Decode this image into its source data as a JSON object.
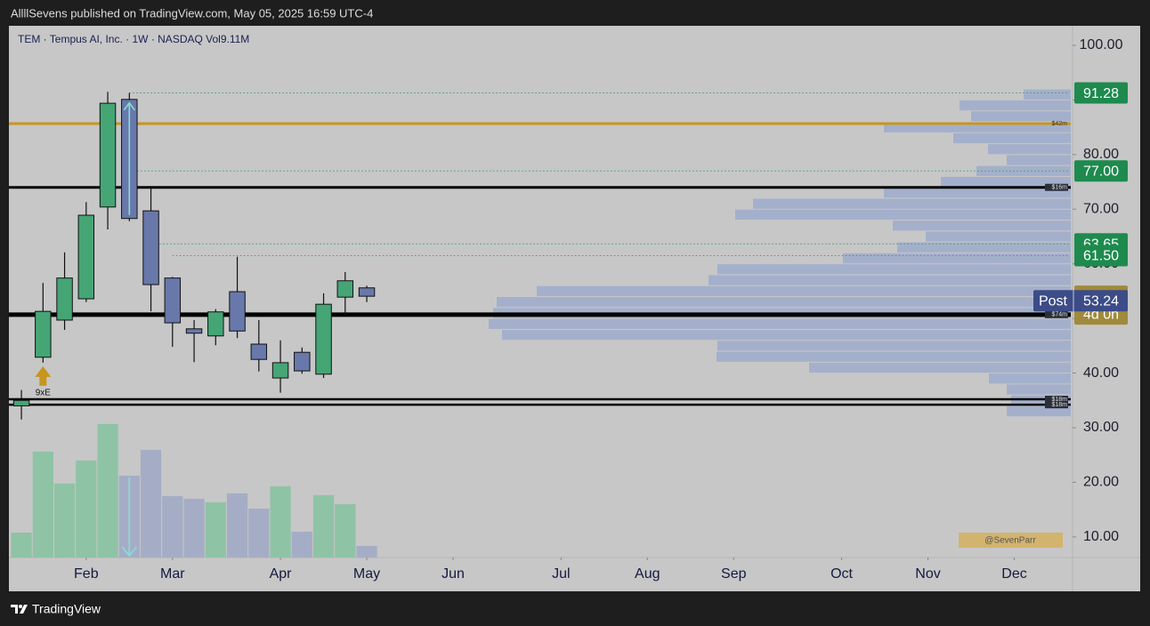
{
  "header": {
    "published": "AllllSevens published on TradingView.com, May 05, 2025 16:59 UTC-4",
    "brand": "TradingView"
  },
  "chart_data": {
    "type": "candlestick",
    "legend_text": "TEM · Tempus AI, Inc. · 1W · NASDAQ  Vol9.11M",
    "categories": [
      null,
      null,
      null,
      null,
      null,
      null,
      null,
      null,
      null,
      null,
      null,
      null,
      null,
      null,
      null,
      null,
      null
    ],
    "xlim": [
      -0.58,
      48.7
    ],
    "xticks": [
      {
        "value": 3,
        "label": "Feb"
      },
      {
        "value": 7,
        "label": "Mar"
      },
      {
        "value": 12,
        "label": "Apr"
      },
      {
        "value": 16,
        "label": "May"
      },
      {
        "value": 20,
        "label": "Jun"
      },
      {
        "value": 25,
        "label": "Jul"
      },
      {
        "value": 29,
        "label": "Aug"
      },
      {
        "value": 33,
        "label": "Sep"
      },
      {
        "value": 38,
        "label": "Oct"
      },
      {
        "value": 42,
        "label": "Nov"
      },
      {
        "value": 46,
        "label": "Dec"
      }
    ],
    "ylim": [
      6.23,
      103.58
    ],
    "yticks": [
      {
        "value": 10,
        "label": "10.00"
      },
      {
        "value": 20,
        "label": "20.00"
      },
      {
        "value": 30,
        "label": "30.00"
      },
      {
        "value": 40,
        "label": "40.00"
      },
      {
        "value": 50,
        "label": "50.00"
      },
      {
        "value": 60,
        "label": "60.00"
      },
      {
        "value": 70,
        "label": "70.00"
      },
      {
        "value": 80,
        "label": "80.00"
      },
      {
        "value": 90,
        "label": "90.00"
      },
      {
        "value": 100,
        "label": "100.00"
      }
    ],
    "open": [
      34.0,
      42.9,
      49.7,
      53.6,
      70.4,
      90.1,
      69.7,
      57.4,
      48.1,
      46.8,
      54.9,
      45.3,
      39.1,
      43.8,
      39.8,
      53.9,
      55.6
    ],
    "high": [
      36.9,
      56.5,
      62.1,
      71.3,
      91.5,
      91.28,
      74.0,
      57.6,
      49.7,
      51.7,
      61.3,
      49.7,
      46.0,
      44.7,
      54.6,
      58.5,
      56.0
    ],
    "low": [
      31.5,
      41.9,
      47.9,
      53.0,
      66.3,
      67.8,
      51.3,
      44.8,
      42.0,
      45.1,
      46.4,
      40.3,
      36.4,
      39.9,
      39.1,
      50.5,
      53.0
    ],
    "close": [
      35.0,
      51.3,
      57.4,
      68.9,
      89.4,
      68.3,
      56.2,
      49.2,
      47.3,
      51.2,
      47.7,
      42.5,
      41.9,
      40.4,
      52.6,
      56.9,
      54.07
    ],
    "up_color": "#45a575",
    "down_color": "#6878aa",
    "volume": {
      "values": [
        19.6,
        83.4,
        58.2,
        76.4,
        105.1,
        64.5,
        84.8,
        48.4,
        46.3,
        43.5,
        50.5,
        38.5,
        56.1,
        20.3,
        49.1,
        42.1,
        9.11
      ],
      "ylim": [
        0,
        140
      ],
      "up_color": "#8fc3a5",
      "down_color": "#a5adc6"
    },
    "volume_profile": {
      "bins": [
        92,
        90,
        88,
        86,
        84,
        82,
        80,
        78,
        76,
        74,
        72,
        70,
        68,
        66,
        64,
        62,
        60,
        58,
        56,
        54,
        52,
        50,
        48,
        46,
        44,
        42,
        40,
        38,
        36,
        34,
        32
      ],
      "values": [
        53,
        125,
        112,
        210,
        132,
        93,
        72,
        106,
        146,
        210,
        357,
        377,
        200,
        163,
        195,
        256,
        397,
        407,
        600,
        645,
        649,
        654,
        639,
        397,
        398,
        294,
        92,
        72,
        67,
        72
      ],
      "xlim": [
        0,
        1195
      ],
      "color": "#9eaccb"
    },
    "levels": [
      {
        "value": 85.67,
        "color": "#c8961e",
        "label": "$42m",
        "width": 3
      },
      {
        "value": 74.0,
        "color": "#000000",
        "label": "$16m",
        "width": 3
      },
      {
        "value": 50.7,
        "color": "#000000",
        "label": "$74m",
        "width": 5
      },
      {
        "value": 35.2,
        "color": "#000000",
        "label": "$18m",
        "width": 2.5
      },
      {
        "value": 34.2,
        "color": "#000000",
        "label": "$18m",
        "width": 2.5
      }
    ],
    "price_labels": [
      {
        "value": 91.28,
        "label": "91.28",
        "color": "#1e8a4e"
      },
      {
        "value": 77.0,
        "label": "77.00",
        "color": "#1e8a4e"
      },
      {
        "value": 63.65,
        "label": "63.65",
        "color": "#1e8a4e"
      },
      {
        "value": 61.5,
        "label": "61.50",
        "color": "#1e8a4e"
      }
    ],
    "last_price": {
      "value": 54.07,
      "label": "54.07",
      "countdown": "4d 0h",
      "color": "#a08a3c"
    },
    "post_price": {
      "value": 53.24,
      "label": "53.24",
      "prefix": "Post",
      "color": "#3c4c88"
    },
    "annotations": [
      {
        "text": "9xE",
        "at": 1
      }
    ],
    "watermark": "@SevenParr"
  }
}
